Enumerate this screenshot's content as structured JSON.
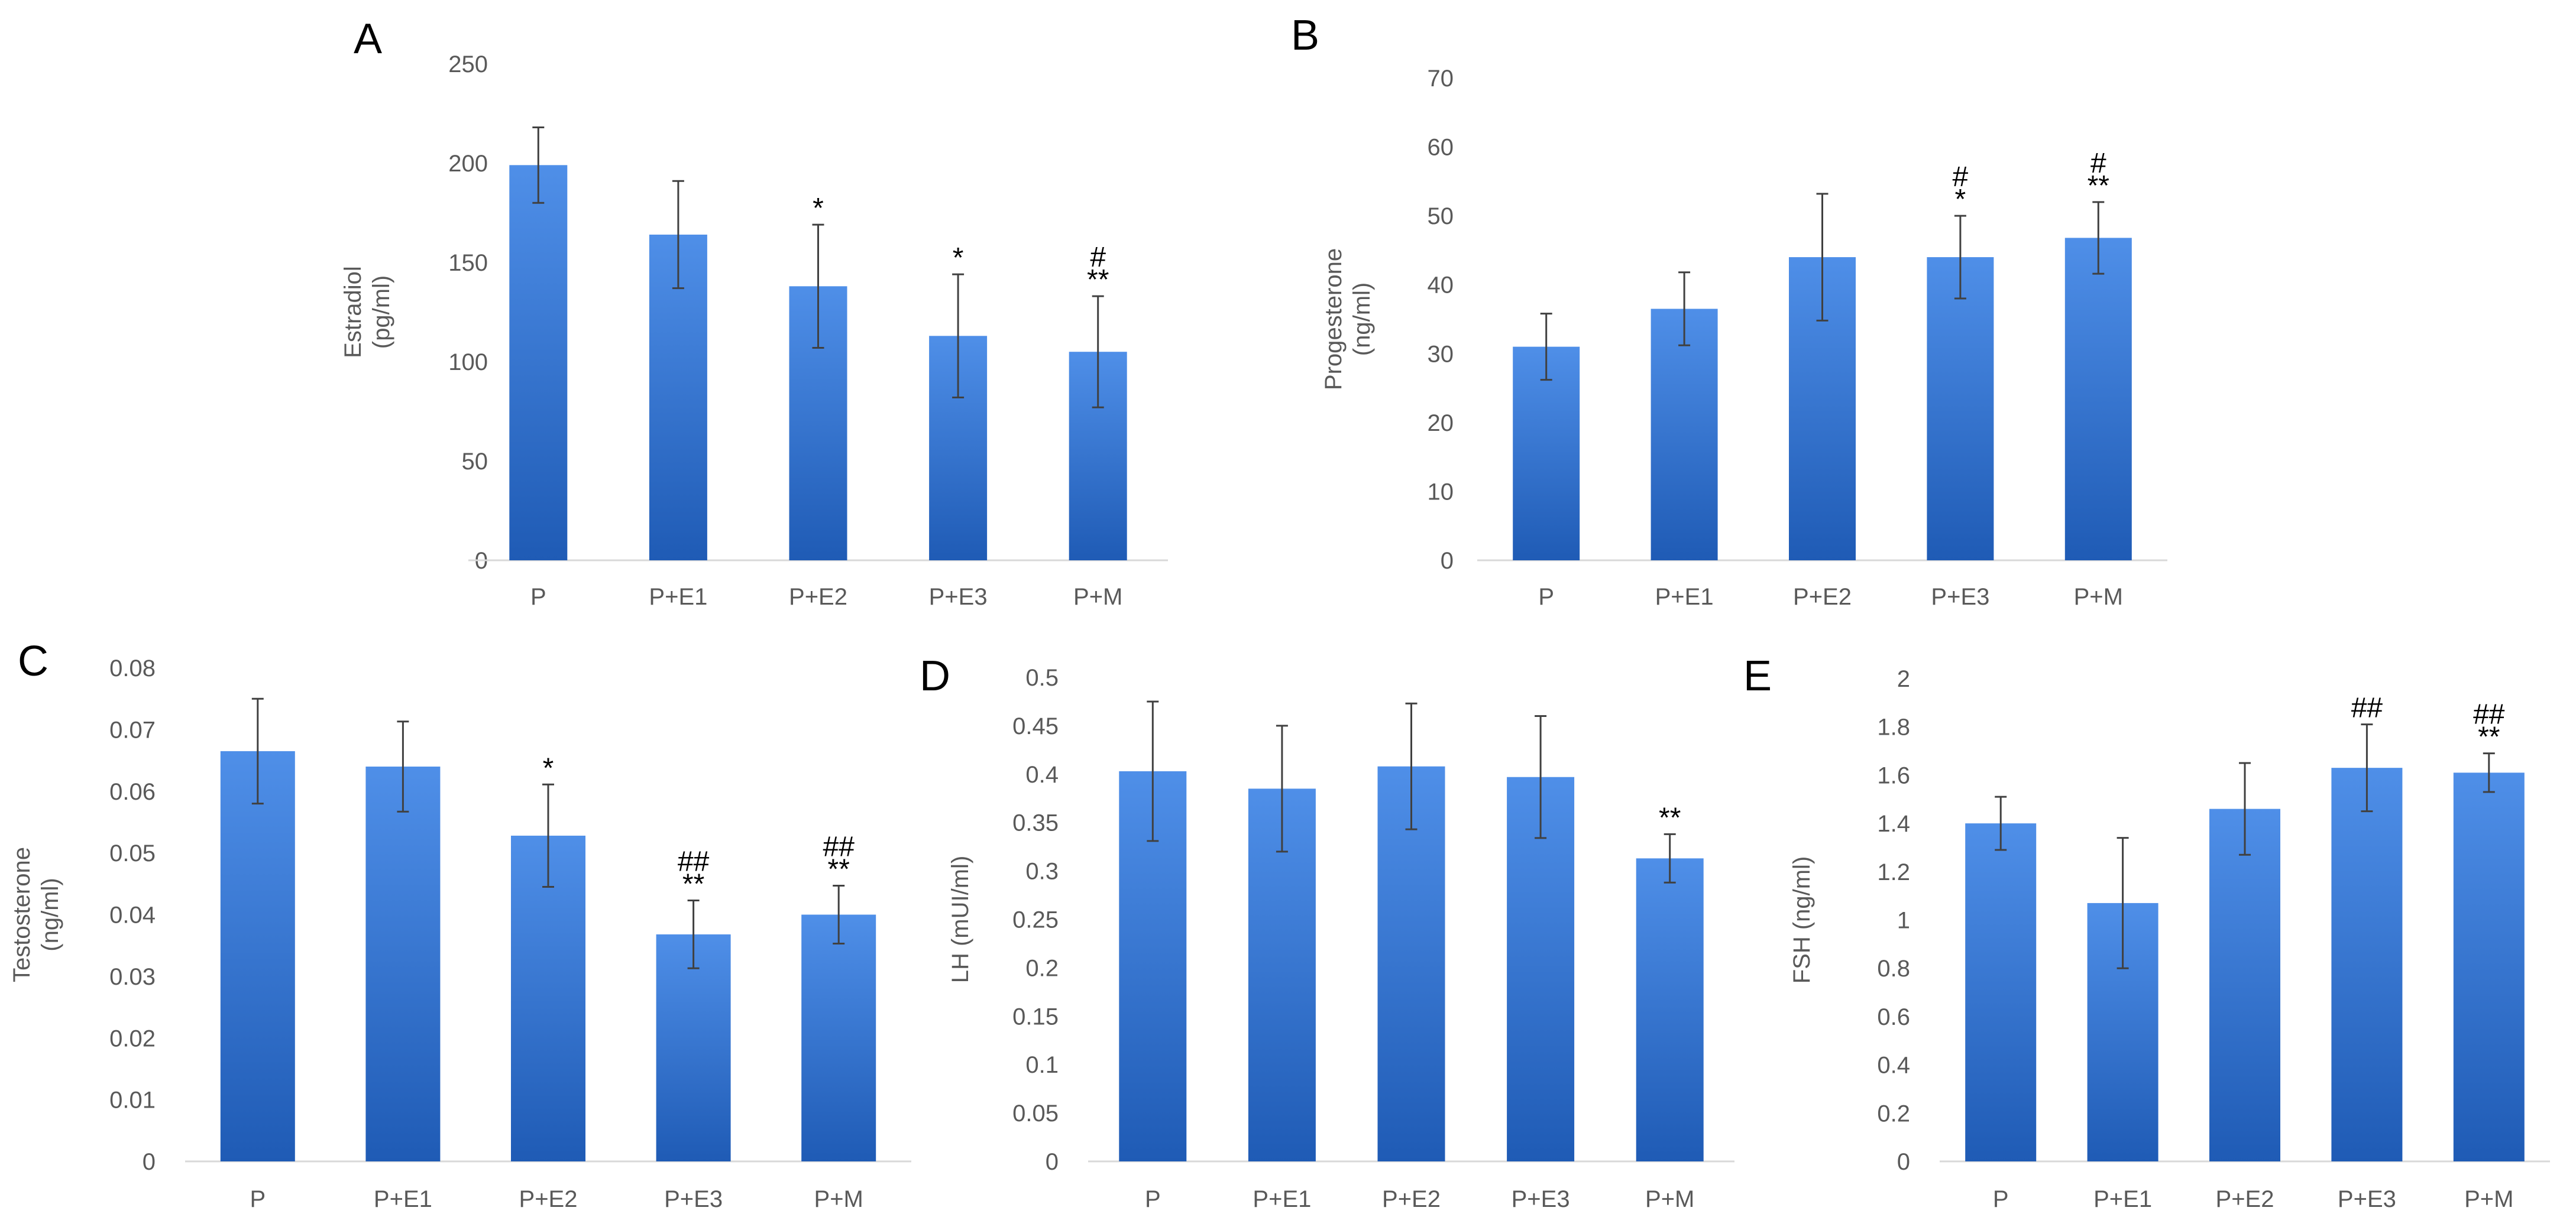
{
  "chart_data": [
    {
      "panel": "A",
      "type": "bar",
      "ylabel": [
        "Estradiol",
        "(pg/ml)"
      ],
      "categories": [
        "P",
        "P+E1",
        "P+E2",
        "P+E3",
        "P+M"
      ],
      "values": [
        199,
        164,
        138,
        113,
        105
      ],
      "errors": [
        19,
        27,
        31,
        31,
        28
      ],
      "ylim": [
        0,
        250
      ],
      "yticks": [
        "0",
        "50",
        "100",
        "150",
        "200",
        "250"
      ],
      "annotations": [
        [],
        [],
        [
          "*"
        ],
        [
          "*"
        ],
        [
          "#",
          "**"
        ]
      ],
      "color": "#2f6fd0",
      "color_dark": "#1f5bb5"
    },
    {
      "panel": "B",
      "type": "bar",
      "ylabel": [
        "Progesterone",
        "(ng/ml)"
      ],
      "categories": [
        "P",
        "P+E1",
        "P+E2",
        "P+E3",
        "P+M"
      ],
      "values": [
        31,
        36.5,
        44,
        44,
        46.8
      ],
      "errors": [
        4.8,
        5.3,
        9.2,
        6,
        5.2
      ],
      "ylim": [
        0,
        70
      ],
      "yticks": [
        "0",
        "10",
        "20",
        "30",
        "40",
        "50",
        "60",
        "70"
      ],
      "annotations": [
        [],
        [],
        [],
        [
          "#",
          "*"
        ],
        [
          "#",
          "**"
        ]
      ],
      "color": "#2f6fd0",
      "color_dark": "#1f5bb5"
    },
    {
      "panel": "C",
      "type": "bar",
      "ylabel": [
        "Testosterone",
        "(ng/ml)"
      ],
      "categories": [
        "P",
        "P+E1",
        "P+E2",
        "P+E3",
        "P+M"
      ],
      "values": [
        0.0665,
        0.064,
        0.0528,
        0.0368,
        0.04
      ],
      "errors": [
        0.0085,
        0.0073,
        0.0083,
        0.0055,
        0.0047
      ],
      "ylim": [
        0,
        0.08
      ],
      "yticks": [
        "0",
        "0.01",
        "0.02",
        "0.03",
        "0.04",
        "0.05",
        "0.06",
        "0.07",
        "0.08"
      ],
      "annotations": [
        [],
        [],
        [
          "*"
        ],
        [
          "##",
          "**"
        ],
        [
          "##",
          "**"
        ]
      ],
      "color": "#2f6fd0",
      "color_dark": "#1f5bb5"
    },
    {
      "panel": "D",
      "type": "bar",
      "ylabel": [
        "LH (mUI/ml)"
      ],
      "categories": [
        "P",
        "P+E1",
        "P+E2",
        "P+E3",
        "P+M"
      ],
      "values": [
        0.403,
        0.385,
        0.408,
        0.397,
        0.313
      ],
      "errors": [
        0.072,
        0.065,
        0.065,
        0.063,
        0.025
      ],
      "ylim": [
        0,
        0.5
      ],
      "yticks": [
        "0",
        "0.05",
        "0.1",
        "0.15",
        "0.2",
        "0.25",
        "0.3",
        "0.35",
        "0.4",
        "0.45",
        "0.5"
      ],
      "annotations": [
        [],
        [],
        [],
        [],
        [
          "**"
        ]
      ],
      "color": "#2f6fd0",
      "color_dark": "#1f5bb5"
    },
    {
      "panel": "E",
      "type": "bar",
      "ylabel": [
        "FSH (ng/ml)"
      ],
      "categories": [
        "P",
        "P+E1",
        "P+E2",
        "P+E3",
        "P+M"
      ],
      "values": [
        1.4,
        1.07,
        1.46,
        1.63,
        1.61
      ],
      "errors": [
        0.11,
        0.27,
        0.19,
        0.18,
        0.08
      ],
      "ylim": [
        0,
        2
      ],
      "yticks": [
        "0",
        "0.2",
        "0.4",
        "0.6",
        "0.8",
        "1",
        "1.2",
        "1.4",
        "1.6",
        "1.8",
        "2"
      ],
      "annotations": [
        [],
        [],
        [],
        [
          "##"
        ],
        [
          "##",
          "**"
        ]
      ],
      "color": "#2f6fd0",
      "color_dark": "#1f5bb5"
    }
  ]
}
